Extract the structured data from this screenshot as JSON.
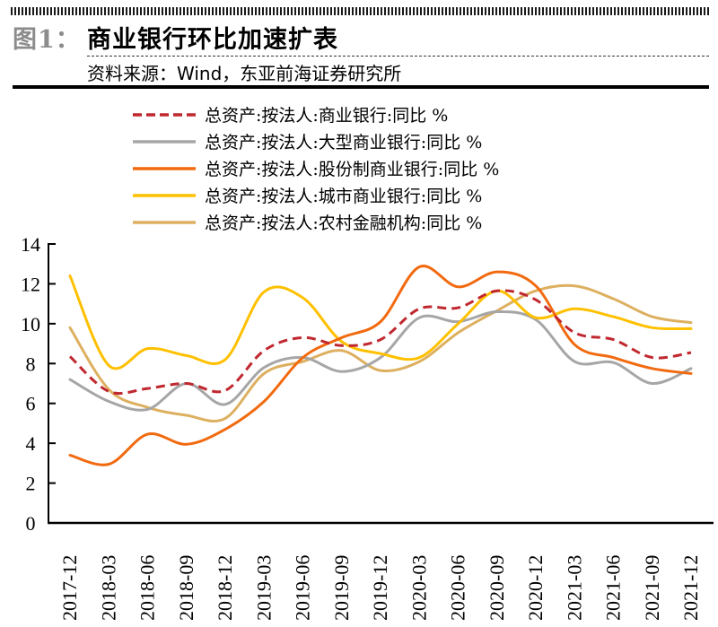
{
  "header": {
    "figure_label": "图1：",
    "title": "商业银行环比加速扩表",
    "source": "资料来源：Wind，东亚前海证券研究所"
  },
  "chart_data": {
    "type": "line",
    "title": "商业银行环比加速扩表",
    "xlabel": "",
    "ylabel": "",
    "ylim": [
      0,
      14
    ],
    "yticks": [
      "0",
      "2",
      "4",
      "6",
      "8",
      "10",
      "12",
      "14"
    ],
    "grid": false,
    "legend_position": "top-center",
    "x": [
      "2017-12",
      "2018-03",
      "2018-06",
      "2018-09",
      "2018-12",
      "2019-03",
      "2019-06",
      "2019-09",
      "2019-12",
      "2020-03",
      "2020-06",
      "2020-09",
      "2020-12",
      "2021-03",
      "2021-06",
      "2021-09",
      "2021-12"
    ],
    "series": [
      {
        "name": "总资产:按法人:商业银行:同比 %",
        "color": "#C0282F",
        "dash": true,
        "values": [
          8.35,
          6.6,
          6.75,
          7.0,
          6.65,
          8.65,
          9.3,
          8.9,
          9.2,
          10.75,
          10.8,
          11.65,
          11.2,
          9.55,
          9.2,
          8.3,
          8.55
        ]
      },
      {
        "name": "总资产:按法人:大型商业银行:同比 %",
        "color": "#A6A6A6",
        "dash": false,
        "values": [
          7.2,
          6.1,
          5.7,
          7.0,
          5.95,
          7.8,
          8.3,
          7.6,
          8.3,
          10.3,
          10.1,
          10.6,
          10.2,
          8.1,
          8.05,
          7.0,
          7.75
        ]
      },
      {
        "name": "总资产:按法人:股份制商业银行:同比 %",
        "color": "#F26A0F",
        "dash": false,
        "values": [
          3.4,
          2.95,
          4.45,
          3.95,
          4.7,
          6.1,
          8.3,
          9.3,
          10.1,
          12.85,
          11.85,
          12.6,
          11.9,
          8.95,
          8.3,
          7.75,
          7.5
        ]
      },
      {
        "name": "总资产:按法人:城市商业银行:同比 %",
        "color": "#FFC000",
        "dash": false,
        "values": [
          12.4,
          7.9,
          8.75,
          8.4,
          8.2,
          11.6,
          11.3,
          9.1,
          8.5,
          8.3,
          10.0,
          11.65,
          10.3,
          10.75,
          10.35,
          9.8,
          9.75
        ]
      },
      {
        "name": "总资产:按法人:农村金融机构:同比 %",
        "color": "#DDB060",
        "dash": false,
        "values": [
          9.8,
          6.7,
          5.8,
          5.4,
          5.25,
          7.5,
          8.1,
          8.65,
          7.65,
          8.1,
          9.55,
          10.65,
          11.65,
          11.9,
          11.25,
          10.35,
          10.05
        ]
      }
    ]
  }
}
